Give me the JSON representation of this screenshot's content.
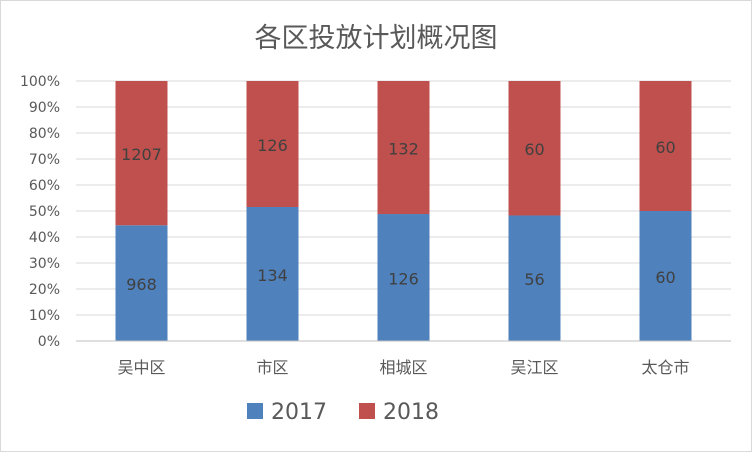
{
  "chart_data": {
    "type": "bar",
    "stacked": "percent",
    "title": "各区投放计划概况图",
    "categories": [
      "吴中区",
      "市区",
      "相城区",
      "吴江区",
      "太仓市"
    ],
    "series": [
      {
        "name": "2017",
        "values": [
          968,
          134,
          126,
          56,
          60
        ],
        "color": "#4f81bd"
      },
      {
        "name": "2018",
        "values": [
          1207,
          126,
          132,
          60,
          60
        ],
        "color": "#c0504d"
      }
    ],
    "yticks": [
      "0%",
      "10%",
      "20%",
      "30%",
      "40%",
      "50%",
      "60%",
      "70%",
      "80%",
      "90%",
      "100%"
    ],
    "ylim": [
      0,
      100
    ],
    "xlabel": "",
    "ylabel": "",
    "legend": "bottom"
  }
}
